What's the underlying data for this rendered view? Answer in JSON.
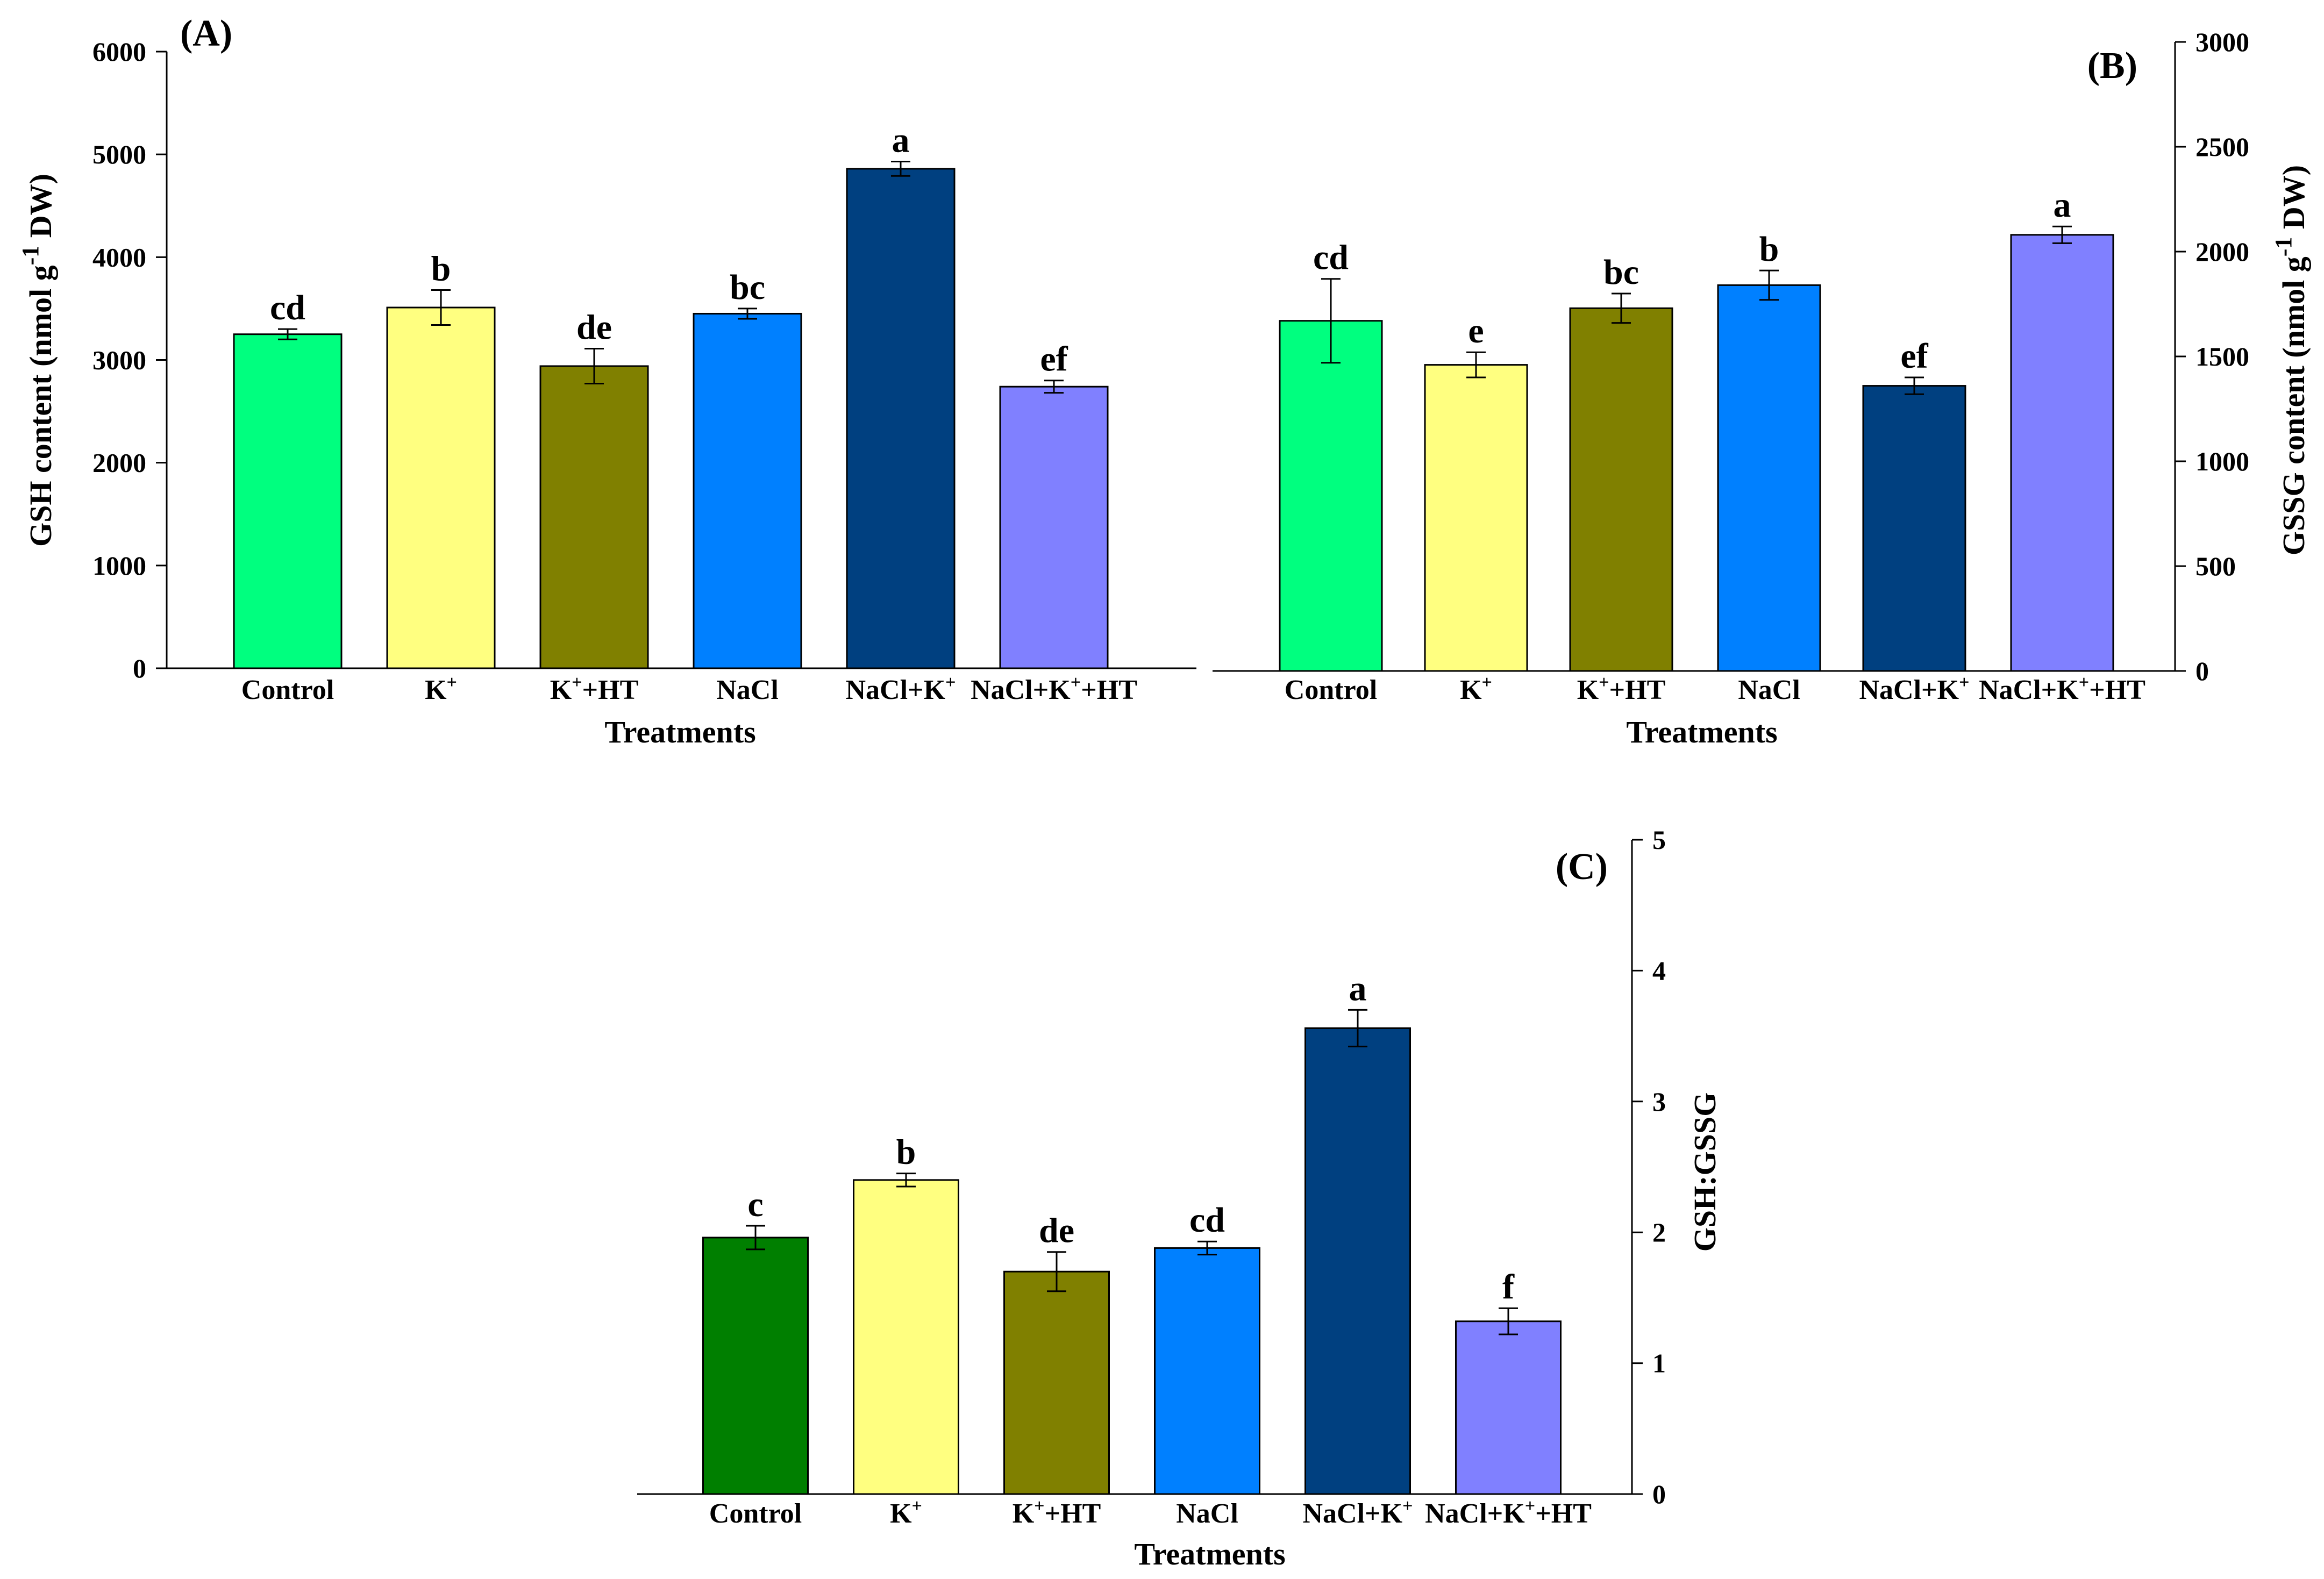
{
  "chart_data": [
    {
      "id": "A",
      "type": "bar",
      "panel_label": "(A)",
      "categories": [
        {
          "base": "Control",
          "sup": "",
          "rest": ""
        },
        {
          "base": "K",
          "sup": "+",
          "rest": ""
        },
        {
          "base": "K",
          "sup": "+",
          "rest": "+HT"
        },
        {
          "base": "NaCl",
          "sup": "",
          "rest": ""
        },
        {
          "base": "NaCl+K",
          "sup": "+",
          "rest": ""
        },
        {
          "base": "NaCl+K",
          "sup": "+",
          "rest": "+HT"
        }
      ],
      "values": [
        3250,
        3510,
        2940,
        3450,
        4860,
        2740
      ],
      "errors": [
        50,
        170,
        170,
        50,
        70,
        60
      ],
      "letters": [
        "cd",
        "b",
        "de",
        "bc",
        "a",
        "ef"
      ],
      "colors": [
        "#00ff7f",
        "#ffff80",
        "#808000",
        "#0080ff",
        "#004080",
        "#8080ff"
      ],
      "ylim": [
        0,
        6000
      ],
      "yticks": [
        0,
        1000,
        2000,
        3000,
        4000,
        5000,
        6000
      ],
      "xlabel": "Treatments",
      "ylabel": {
        "pre": "GSH content (nmol g",
        "sup": "-1",
        "post": " DW)"
      },
      "yaxis_side": "left"
    },
    {
      "id": "B",
      "type": "bar",
      "panel_label": "(B)",
      "categories": [
        {
          "base": "Control",
          "sup": "",
          "rest": ""
        },
        {
          "base": "K",
          "sup": "+",
          "rest": ""
        },
        {
          "base": "K",
          "sup": "+",
          "rest": "+HT"
        },
        {
          "base": "NaCl",
          "sup": "",
          "rest": ""
        },
        {
          "base": "NaCl+K",
          "sup": "+",
          "rest": ""
        },
        {
          "base": "NaCl+K",
          "sup": "+",
          "rest": "+HT"
        }
      ],
      "values": [
        1670,
        1460,
        1730,
        1840,
        1360,
        2080
      ],
      "errors": [
        200,
        60,
        70,
        70,
        40,
        40
      ],
      "letters": [
        "cd",
        "e",
        "bc",
        "b",
        "ef",
        "a"
      ],
      "colors": [
        "#00ff7f",
        "#ffff80",
        "#808000",
        "#0080ff",
        "#004080",
        "#8080ff"
      ],
      "ylim": [
        0,
        3000
      ],
      "yticks": [
        0,
        500,
        1000,
        1500,
        2000,
        2500,
        3000
      ],
      "xlabel": "Treatments",
      "ylabel": {
        "pre": "GSSG content (nmol g",
        "sup": "-1",
        "post": " DW)"
      },
      "yaxis_side": "right"
    },
    {
      "id": "C",
      "type": "bar",
      "panel_label": "(C)",
      "categories": [
        {
          "base": "Control",
          "sup": "",
          "rest": ""
        },
        {
          "base": "K",
          "sup": "+",
          "rest": ""
        },
        {
          "base": "K",
          "sup": "+",
          "rest": "+HT"
        },
        {
          "base": "NaCl",
          "sup": "",
          "rest": ""
        },
        {
          "base": "NaCl+K",
          "sup": "+",
          "rest": ""
        },
        {
          "base": "NaCl+K",
          "sup": "+",
          "rest": "+HT"
        }
      ],
      "values": [
        1.96,
        2.4,
        1.7,
        1.88,
        3.56,
        1.32
      ],
      "errors": [
        0.09,
        0.05,
        0.15,
        0.05,
        0.14,
        0.1
      ],
      "letters": [
        "c",
        "b",
        "de",
        "cd",
        "a",
        "f"
      ],
      "colors": [
        "#007f00",
        "#ffff80",
        "#808000",
        "#0080ff",
        "#004080",
        "#8080ff"
      ],
      "ylim": [
        0,
        5
      ],
      "yticks": [
        0,
        1,
        2,
        3,
        4,
        5
      ],
      "xlabel": "Treatments",
      "ylabel": {
        "pre": "GSH:GSSG",
        "sup": "",
        "post": ""
      },
      "yaxis_side": "right"
    }
  ]
}
